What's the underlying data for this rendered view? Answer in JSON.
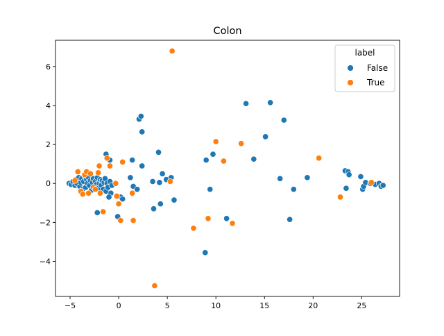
{
  "chart_data": {
    "type": "scatter",
    "title": "Colon",
    "xlabel": "",
    "ylabel": "",
    "xlim": [
      -6.5,
      28.9
    ],
    "ylim": [
      -5.8,
      7.35
    ],
    "xticks": [
      -5,
      0,
      5,
      10,
      15,
      20,
      25
    ],
    "yticks": [
      -4,
      -2,
      0,
      2,
      4,
      6
    ],
    "grid": false,
    "legend": {
      "title": "label",
      "position": "top-right"
    },
    "series": [
      {
        "name": "False",
        "color": "#1f77b4",
        "points": [
          [
            -5.1,
            0.0
          ],
          [
            -4.9,
            -0.05
          ],
          [
            -4.7,
            0.1
          ],
          [
            -4.5,
            -0.1
          ],
          [
            -4.4,
            0.2
          ],
          [
            -4.3,
            0.0
          ],
          [
            -4.1,
            0.3
          ],
          [
            -4.0,
            -0.15
          ],
          [
            -3.9,
            0.05
          ],
          [
            -3.8,
            0.25
          ],
          [
            -3.7,
            -0.3
          ],
          [
            -3.6,
            0.1
          ],
          [
            -3.5,
            0.4
          ],
          [
            -3.4,
            -0.2
          ],
          [
            -3.3,
            0.2
          ],
          [
            -3.2,
            0.0
          ],
          [
            -3.1,
            0.3
          ],
          [
            -3.0,
            -0.1
          ],
          [
            -2.9,
            0.15
          ],
          [
            -2.8,
            -0.35
          ],
          [
            -2.7,
            0.05
          ],
          [
            -2.6,
            0.25
          ],
          [
            -2.5,
            -0.2
          ],
          [
            -2.4,
            0.1
          ],
          [
            -2.3,
            -0.05
          ],
          [
            -2.2,
            0.3
          ],
          [
            -2.1,
            -0.25
          ],
          [
            -2.0,
            0.0
          ],
          [
            -1.9,
            0.2
          ],
          [
            -1.8,
            -0.1
          ],
          [
            -1.7,
            0.15
          ],
          [
            -1.6,
            -0.3
          ],
          [
            -1.5,
            0.05
          ],
          [
            -1.4,
            0.25
          ],
          [
            -1.3,
            -0.4
          ],
          [
            -1.2,
            0.0
          ],
          [
            -1.1,
            -0.2
          ],
          [
            -0.9,
            0.1
          ],
          [
            -0.8,
            -0.5
          ],
          [
            -0.7,
            -0.1
          ],
          [
            -1.3,
            1.5
          ],
          [
            -0.9,
            1.2
          ],
          [
            -2.2,
            -1.5
          ],
          [
            -1.0,
            -0.7
          ],
          [
            -0.1,
            -1.7
          ],
          [
            0.2,
            -0.7
          ],
          [
            0.4,
            -0.8
          ],
          [
            1.2,
            0.3
          ],
          [
            1.4,
            1.2
          ],
          [
            1.5,
            -0.15
          ],
          [
            1.9,
            -0.3
          ],
          [
            2.1,
            3.3
          ],
          [
            2.3,
            3.45
          ],
          [
            2.4,
            2.65
          ],
          [
            2.4,
            0.9
          ],
          [
            3.5,
            0.1
          ],
          [
            3.6,
            -1.3
          ],
          [
            4.1,
            1.6
          ],
          [
            4.2,
            0.05
          ],
          [
            4.3,
            -1.05
          ],
          [
            4.5,
            0.5
          ],
          [
            4.9,
            0.2
          ],
          [
            5.4,
            0.3
          ],
          [
            5.7,
            -0.85
          ],
          [
            9.0,
            1.2
          ],
          [
            9.4,
            -0.3
          ],
          [
            9.7,
            1.5
          ],
          [
            8.9,
            -3.55
          ],
          [
            11.1,
            -1.8
          ],
          [
            13.1,
            4.1
          ],
          [
            13.9,
            1.25
          ],
          [
            15.1,
            2.4
          ],
          [
            15.6,
            4.15
          ],
          [
            16.6,
            0.25
          ],
          [
            17.0,
            3.25
          ],
          [
            17.6,
            -1.85
          ],
          [
            18.0,
            -0.3
          ],
          [
            19.4,
            0.3
          ],
          [
            23.3,
            0.65
          ],
          [
            23.4,
            -0.25
          ],
          [
            23.6,
            0.6
          ],
          [
            23.7,
            0.45
          ],
          [
            24.9,
            0.35
          ],
          [
            25.1,
            -0.3
          ],
          [
            25.2,
            -0.15
          ],
          [
            25.4,
            0.05
          ],
          [
            25.9,
            0.0
          ],
          [
            26.4,
            -0.05
          ],
          [
            26.8,
            0.0
          ],
          [
            27.0,
            -0.15
          ],
          [
            27.2,
            -0.1
          ]
        ]
      },
      {
        "name": "True",
        "color": "#ff7f0e",
        "points": [
          [
            -4.5,
            0.15
          ],
          [
            -4.2,
            0.6
          ],
          [
            -3.9,
            -0.4
          ],
          [
            -3.7,
            -0.55
          ],
          [
            -3.5,
            0.45
          ],
          [
            -3.3,
            0.6
          ],
          [
            -3.1,
            -0.5
          ],
          [
            -2.9,
            0.5
          ],
          [
            -2.6,
            -0.2
          ],
          [
            -2.4,
            -0.3
          ],
          [
            -2.1,
            0.55
          ],
          [
            -2.0,
            0.9
          ],
          [
            -1.9,
            -0.5
          ],
          [
            -1.6,
            -1.45
          ],
          [
            -1.2,
            1.3
          ],
          [
            -0.9,
            0.9
          ],
          [
            -0.3,
            0.0
          ],
          [
            -0.2,
            -0.65
          ],
          [
            0.0,
            -1.05
          ],
          [
            0.2,
            -1.9
          ],
          [
            0.4,
            1.1
          ],
          [
            1.4,
            -0.5
          ],
          [
            1.5,
            -1.9
          ],
          [
            3.7,
            -5.25
          ],
          [
            5.5,
            6.8
          ],
          [
            5.3,
            0.1
          ],
          [
            7.7,
            -2.3
          ],
          [
            9.2,
            -1.8
          ],
          [
            10.0,
            2.15
          ],
          [
            10.8,
            1.15
          ],
          [
            11.7,
            -2.05
          ],
          [
            12.6,
            2.05
          ],
          [
            20.6,
            1.3
          ],
          [
            22.8,
            -0.7
          ],
          [
            26.0,
            0.05
          ]
        ]
      }
    ]
  }
}
